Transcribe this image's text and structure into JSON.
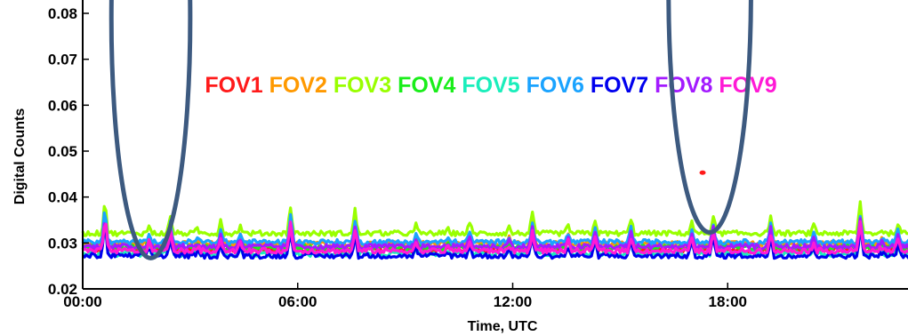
{
  "chart_data": {
    "type": "line",
    "title": "",
    "xlabel": "Time, UTC",
    "ylabel": "Digital Counts",
    "xlim": [
      0,
      24
    ],
    "ylim": [
      0.02,
      0.08
    ],
    "x_ticks": [
      0,
      6,
      12,
      18
    ],
    "x_tick_labels": [
      "00:00",
      "06:00",
      "12:00",
      "18:00"
    ],
    "y_ticks": [
      0.02,
      0.03,
      0.04,
      0.05,
      0.06,
      0.07,
      0.08
    ],
    "y_tick_labels": [
      "0.02",
      "0.03",
      "0.04",
      "0.05",
      "0.06",
      "0.07",
      "0.08"
    ],
    "grid": false,
    "legend_placement": "top-center",
    "series": [
      {
        "name": "FOV1",
        "color": "#ff1a1a",
        "baseline": 0.0285
      },
      {
        "name": "FOV2",
        "color": "#ff9900",
        "baseline": 0.0298
      },
      {
        "name": "FOV3",
        "color": "#99ff00",
        "baseline": 0.0321
      },
      {
        "name": "FOV4",
        "color": "#1aee1a",
        "baseline": 0.029
      },
      {
        "name": "FOV5",
        "color": "#1aeebb",
        "baseline": 0.0276
      },
      {
        "name": "FOV6",
        "color": "#1aa3ff",
        "baseline": 0.0302
      },
      {
        "name": "FOV7",
        "color": "#0000ee",
        "baseline": 0.0272
      },
      {
        "name": "FOV8",
        "color": "#a31aff",
        "baseline": 0.0292
      },
      {
        "name": "FOV9",
        "color": "#ff1ad6",
        "baseline": 0.0283
      }
    ],
    "spikes": [
      {
        "x": 0.62,
        "y": 0.0385
      },
      {
        "x": 1.85,
        "y": 0.032
      },
      {
        "x": 2.45,
        "y": 0.0345
      },
      {
        "x": 3.2,
        "y": 0.031
      },
      {
        "x": 3.85,
        "y": 0.033
      },
      {
        "x": 4.4,
        "y": 0.032
      },
      {
        "x": 5.8,
        "y": 0.0365
      },
      {
        "x": 7.6,
        "y": 0.0355
      },
      {
        "x": 9.3,
        "y": 0.032
      },
      {
        "x": 10.2,
        "y": 0.031
      },
      {
        "x": 10.8,
        "y": 0.0325
      },
      {
        "x": 11.9,
        "y": 0.0315
      },
      {
        "x": 12.55,
        "y": 0.035
      },
      {
        "x": 13.55,
        "y": 0.032
      },
      {
        "x": 14.3,
        "y": 0.0335
      },
      {
        "x": 15.3,
        "y": 0.0335
      },
      {
        "x": 17.0,
        "y": 0.033
      },
      {
        "x": 17.6,
        "y": 0.0345
      },
      {
        "x": 19.2,
        "y": 0.0345
      },
      {
        "x": 20.4,
        "y": 0.032
      },
      {
        "x": 21.7,
        "y": 0.0375
      },
      {
        "x": 22.3,
        "y": 0.031
      },
      {
        "x": 22.75,
        "y": 0.0325
      },
      {
        "x": 23.2,
        "y": 0.032
      }
    ],
    "outlier": {
      "series": "FOV1",
      "x": 17.3,
      "y": 0.0453
    },
    "highlights": [
      {
        "x_center": 1.9,
        "x_halfwidth": 1.1,
        "y_bottom": 0.0267
      },
      {
        "x_center": 17.5,
        "x_halfwidth": 1.15,
        "y_bottom": 0.0323
      }
    ]
  }
}
